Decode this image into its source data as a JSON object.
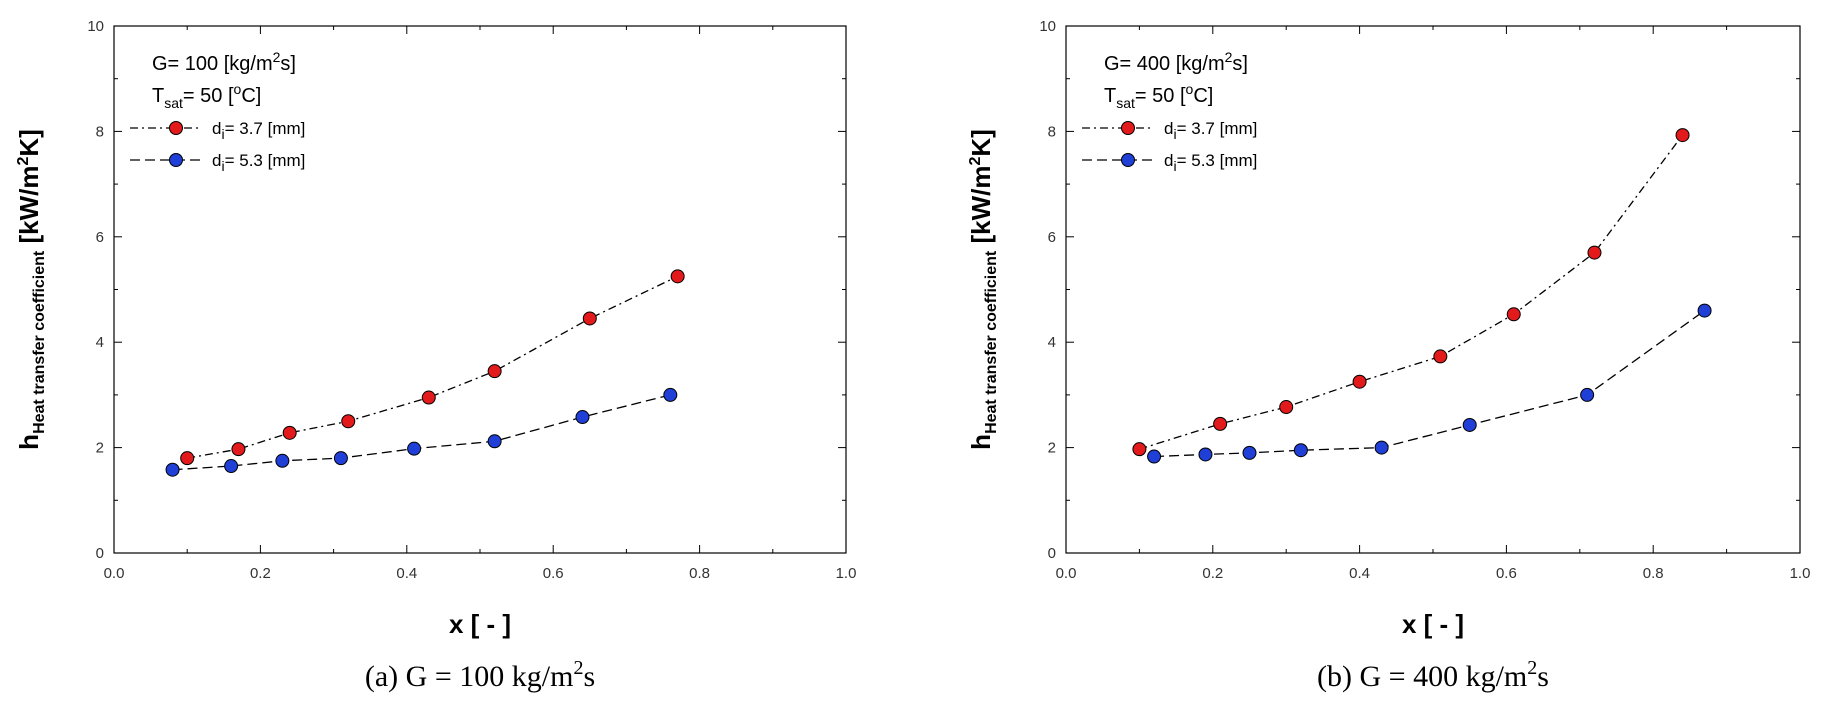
{
  "chart_data": [
    {
      "type": "line",
      "title": "",
      "caption": "(a) G = 100 kg/m²s",
      "caption_parts": {
        "pre": "(a) G = 100 kg/m",
        "sup": "2",
        "post": "s"
      },
      "xlabel": "x [ - ]",
      "ylabel": {
        "main": "h",
        "sub": "Heat transfer coefficient",
        "unit_pre": " [kW/m",
        "unit_sup": "2",
        "unit_post": "K]"
      },
      "xlim": [
        0.0,
        1.0
      ],
      "ylim": [
        0,
        10
      ],
      "xticks": [
        "0.0",
        "0.2",
        "0.4",
        "0.6",
        "0.8",
        "1.0"
      ],
      "yticks": [
        "0",
        "2",
        "4",
        "6",
        "8",
        "10"
      ],
      "annotations": {
        "g_line": {
          "pre": "G= 100 [kg/m",
          "sup": "2",
          "post": "s]"
        },
        "t_line": {
          "main": "T",
          "sub": "sat",
          "mid": "= 50 [",
          "sup": "o",
          "post": "C]"
        }
      },
      "series": [
        {
          "name": "d_i= 3.7 [mm]",
          "legend": {
            "main": "d",
            "sub": "i",
            "post": "= 3.7 [mm]"
          },
          "color": "#e31a1c",
          "dash": "8,4,2,4",
          "x": [
            0.1,
            0.17,
            0.24,
            0.32,
            0.43,
            0.52,
            0.65,
            0.77
          ],
          "y": [
            1.8,
            1.97,
            2.28,
            2.5,
            2.95,
            3.45,
            4.45,
            5.25
          ]
        },
        {
          "name": "d_i= 5.3 [mm]",
          "legend": {
            "main": "d",
            "sub": "i",
            "post": "= 5.3 [mm]"
          },
          "color": "#1f3fd6",
          "dash": "10,5",
          "x": [
            0.08,
            0.16,
            0.23,
            0.31,
            0.41,
            0.52,
            0.64,
            0.76
          ],
          "y": [
            1.58,
            1.65,
            1.75,
            1.8,
            1.98,
            2.12,
            2.58,
            3.0
          ]
        }
      ]
    },
    {
      "type": "line",
      "title": "",
      "caption": "(b) G = 400 kg/m²s",
      "caption_parts": {
        "pre": "(b) G = 400 kg/m",
        "sup": "2",
        "post": "s"
      },
      "xlabel": "x [ - ]",
      "ylabel": {
        "main": "h",
        "sub": "Heat transfer coefficient",
        "unit_pre": " [kW/m",
        "unit_sup": "2",
        "unit_post": "K]"
      },
      "xlim": [
        0.0,
        1.0
      ],
      "ylim": [
        0,
        10
      ],
      "xticks": [
        "0.0",
        "0.2",
        "0.4",
        "0.6",
        "0.8",
        "1.0"
      ],
      "yticks": [
        "0",
        "2",
        "4",
        "6",
        "8",
        "10"
      ],
      "annotations": {
        "g_line": {
          "pre": "G= 400 [kg/m",
          "sup": "2",
          "post": "s]"
        },
        "t_line": {
          "main": "T",
          "sub": "sat",
          "mid": "= 50 [",
          "sup": "o",
          "post": "C]"
        }
      },
      "series": [
        {
          "name": "d_i= 3.7 [mm]",
          "legend": {
            "main": "d",
            "sub": "i",
            "post": "= 3.7 [mm]"
          },
          "color": "#e31a1c",
          "dash": "8,4,2,4",
          "x": [
            0.1,
            0.21,
            0.3,
            0.4,
            0.51,
            0.61,
            0.72,
            0.84
          ],
          "y": [
            1.97,
            2.45,
            2.77,
            3.25,
            3.73,
            4.53,
            5.7,
            7.93
          ]
        },
        {
          "name": "d_i= 5.3 [mm]",
          "legend": {
            "main": "d",
            "sub": "i",
            "post": "= 5.3 [mm]"
          },
          "color": "#1f3fd6",
          "dash": "10,5",
          "x": [
            0.12,
            0.19,
            0.25,
            0.32,
            0.43,
            0.55,
            0.71,
            0.87
          ],
          "y": [
            1.83,
            1.87,
            1.9,
            1.95,
            2.0,
            2.43,
            3.0,
            4.6
          ]
        }
      ]
    }
  ]
}
